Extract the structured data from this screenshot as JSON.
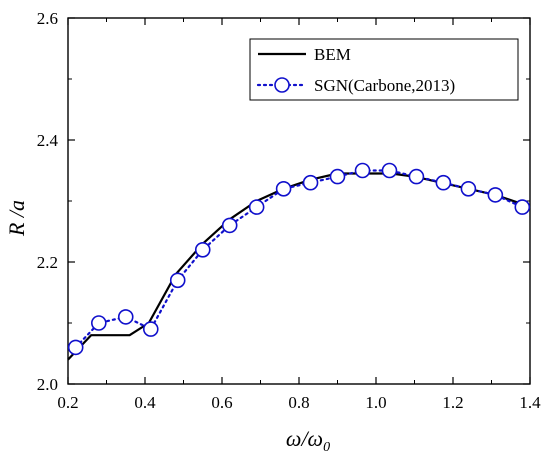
{
  "chart_data": {
    "type": "line",
    "title": "",
    "xlabel": {
      "main": "ω/ω",
      "sub": "0"
    },
    "ylabel": "R /a",
    "xlim": [
      0.2,
      1.4
    ],
    "ylim": [
      2.0,
      2.6
    ],
    "x_ticks": [
      0.2,
      0.4,
      0.6,
      0.8,
      1.0,
      1.2,
      1.4
    ],
    "y_ticks": [
      2.0,
      2.2,
      2.4,
      2.6
    ],
    "x_tick_labels": [
      "0.2",
      "0.4",
      "0.6",
      "0.8",
      "1.0",
      "1.2",
      "1.4"
    ],
    "y_tick_labels": [
      "2.0",
      "2.2",
      "2.4",
      "2.6"
    ],
    "grid": false,
    "legend_position": "top-right",
    "series": [
      {
        "name": "BEM",
        "style": "solid",
        "color": "#000000",
        "marker": "none",
        "x": [
          0.2,
          0.26,
          0.3,
          0.36,
          0.41,
          0.48,
          0.55,
          0.62,
          0.69,
          0.76,
          0.83,
          0.9,
          0.97,
          1.04,
          1.1,
          1.17,
          1.24,
          1.31,
          1.38
        ],
        "y": [
          2.04,
          2.08,
          2.08,
          2.08,
          2.1,
          2.18,
          2.23,
          2.27,
          2.3,
          2.32,
          2.335,
          2.345,
          2.345,
          2.345,
          2.34,
          2.33,
          2.32,
          2.31,
          2.295
        ]
      },
      {
        "name": "SGN(Carbone,2013)",
        "style": "dotted",
        "color": "#1010cc",
        "marker": "open-circle",
        "x": [
          0.22,
          0.28,
          0.35,
          0.415,
          0.485,
          0.55,
          0.62,
          0.69,
          0.76,
          0.83,
          0.9,
          0.965,
          1.035,
          1.105,
          1.175,
          1.24,
          1.31,
          1.38
        ],
        "y": [
          2.06,
          2.1,
          2.11,
          2.09,
          2.17,
          2.22,
          2.26,
          2.29,
          2.32,
          2.33,
          2.34,
          2.35,
          2.35,
          2.34,
          2.33,
          2.32,
          2.31,
          2.29
        ]
      }
    ]
  }
}
